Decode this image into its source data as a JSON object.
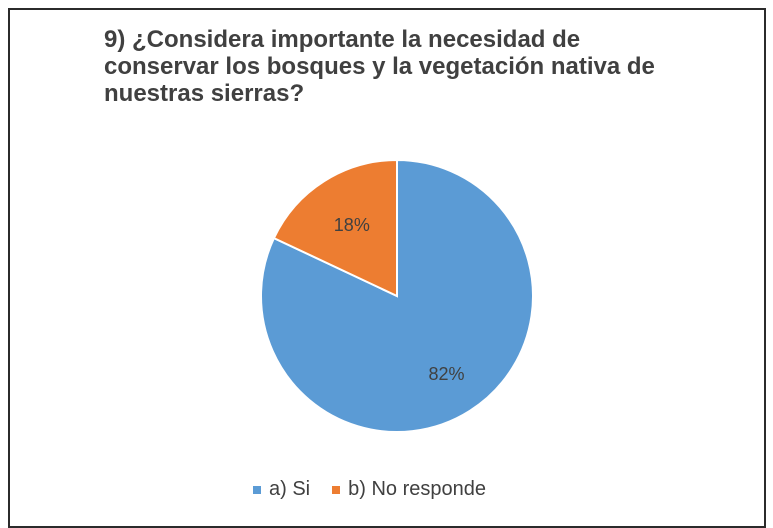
{
  "chart_data": {
    "type": "pie",
    "title_lines": [
      "9) ¿Considera importante la necesidad de",
      "conservar los bosques y la vegetación nativa de",
      "nuestras sierras?"
    ],
    "categories": [
      "a) Si",
      "b) No responde"
    ],
    "values": [
      82,
      18
    ],
    "labels": [
      "82%",
      "18%"
    ],
    "colors": [
      "#5b9bd5",
      "#ed7d31"
    ],
    "legend_position": "bottom"
  }
}
